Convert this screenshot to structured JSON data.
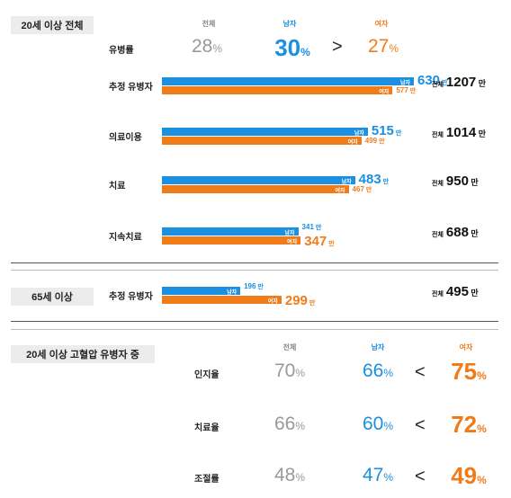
{
  "section1": {
    "tag": "20세 이상 전체",
    "headers": {
      "total": "전체",
      "male": "남자",
      "female": "여자"
    },
    "prevalence": {
      "label": "유병률",
      "total": "28",
      "male": "30",
      "female": "27",
      "cmp": ">",
      "unit": "%"
    }
  },
  "section2": {
    "tag": "65세 이상"
  },
  "section3": {
    "tag": "20세 이상 고혈압 유병자 중",
    "headers": {
      "total": "전체",
      "male": "남자",
      "female": "여자"
    }
  },
  "labels": {
    "male": "남자",
    "female": "여자",
    "total": "전체",
    "unit": "만",
    "pct": "%"
  },
  "colors": {
    "male": "#1b8fe0",
    "female": "#f07c19",
    "total": "#999999"
  },
  "chart_data": {
    "type": "bar",
    "unit": "만",
    "categories": [
      "추정 유병자",
      "의료이용",
      "치료",
      "지속치료",
      "추정 유병자"
    ],
    "groups": [
      "20세 이상 전체",
      "20세 이상 전체",
      "20세 이상 전체",
      "20세 이상 전체",
      "65세 이상"
    ],
    "series": [
      {
        "name": "남자",
        "values": [
          630,
          515,
          483,
          341,
          196
        ]
      },
      {
        "name": "여자",
        "values": [
          577,
          499,
          467,
          347,
          299
        ]
      }
    ],
    "totals": [
      1207,
      1014,
      950,
      688,
      495
    ],
    "rates": {
      "labels": [
        "인지율",
        "치료율",
        "조절률"
      ],
      "total": [
        70,
        66,
        48
      ],
      "male": [
        66,
        60,
        47
      ],
      "female": [
        75,
        72,
        49
      ],
      "cmp": [
        "<",
        "<",
        "<"
      ]
    }
  }
}
